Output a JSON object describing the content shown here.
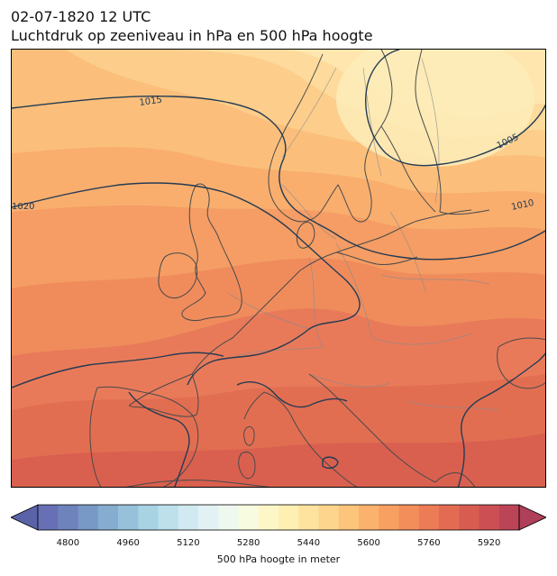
{
  "header": {
    "datetime": "02-07-1820 12 UTC",
    "title": "Luchtdruk op zeeniveau in hPa en 500 hPa hoogte"
  },
  "map": {
    "isobar_labels": [
      "1015",
      "1020",
      "1005",
      "1010"
    ],
    "colors": {
      "coast": "#4a4a4a",
      "border": "#8a8a8a",
      "isobar": "#243b53"
    }
  },
  "colorbar": {
    "label": "500 hPa hoogte in meter",
    "ticks": [
      {
        "value": 4800,
        "text": "4800"
      },
      {
        "value": 4960,
        "text": "4960"
      },
      {
        "value": 5120,
        "text": "5120"
      },
      {
        "value": 5280,
        "text": "5280"
      },
      {
        "value": 5440,
        "text": "5440"
      },
      {
        "value": 5600,
        "text": "5600"
      },
      {
        "value": 5760,
        "text": "5760"
      },
      {
        "value": 5920,
        "text": "5920"
      }
    ],
    "colors": [
      "#6770b5",
      "#6e82bc",
      "#7898c6",
      "#86adcf",
      "#97c1da",
      "#a8d3e3",
      "#bde0eb",
      "#d1eaf1",
      "#e2f2f4",
      "#eff8ef",
      "#f7fbdf",
      "#fdf7c7",
      "#feefb3",
      "#fee39f",
      "#fed58d",
      "#fdc57c",
      "#fbb26d",
      "#f8a062",
      "#f38e5b",
      "#ec7c56",
      "#e36b52",
      "#d95c51",
      "#cc4f53",
      "#bc4457"
    ]
  }
}
